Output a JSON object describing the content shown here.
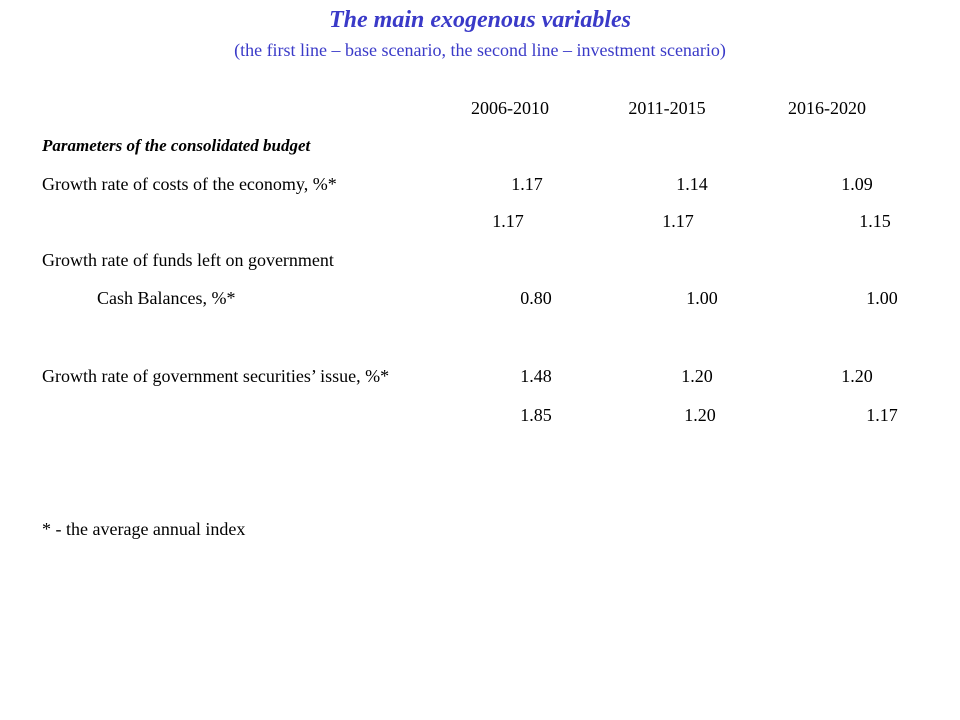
{
  "header": {
    "title": "The main exogenous variables",
    "subtitle": "(the first line – base scenario, the second line – investment scenario)",
    "accent_color": "#3a3ac8"
  },
  "table": {
    "columns": [
      "2006-2010",
      "2011-2015",
      "2016-2020"
    ],
    "section_title": "Parameters of the consolidated budget",
    "rows": [
      {
        "label": "Growth rate of costs of the economy, %*",
        "base": [
          "1.17",
          "1.14",
          "1.09"
        ],
        "investment": [
          "1.17",
          "1.17",
          "1.15"
        ]
      },
      {
        "label_line1": "Growth rate of funds left on government",
        "label_line2": "Cash Balances, %*",
        "base": [
          "0.80",
          "1.00",
          "1.00"
        ]
      },
      {
        "label": "Growth rate of government securities’ issue, %*",
        "base": [
          "1.48",
          "1.20",
          "1.20"
        ],
        "investment": [
          "1.85",
          "1.20",
          "1.17"
        ]
      }
    ]
  },
  "footnote": "* - the average annual index"
}
